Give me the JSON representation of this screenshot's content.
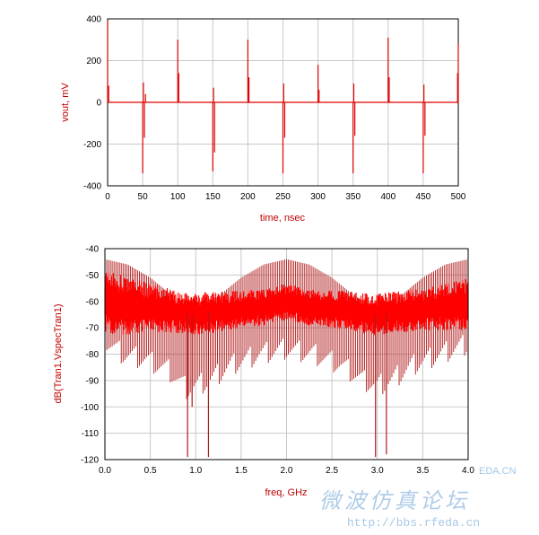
{
  "chart_data": [
    {
      "type": "line",
      "xlabel": "time, nsec",
      "ylabel": "vout, mV",
      "xlim": [
        0,
        500
      ],
      "ylim": [
        -400,
        400
      ],
      "xticks": [
        "0",
        "50",
        "100",
        "150",
        "200",
        "250",
        "300",
        "350",
        "400",
        "450",
        "500"
      ],
      "yticks": [
        "400",
        "200",
        "0",
        "-200",
        "-400"
      ],
      "grid": true,
      "color": "#e00000",
      "spikes": [
        {
          "t": 0,
          "v": 390
        },
        {
          "t": 1.5,
          "v": 80
        },
        {
          "t": 50,
          "v": -340
        },
        {
          "t": 51,
          "v": 95
        },
        {
          "t": 52.5,
          "v": -170
        },
        {
          "t": 54,
          "v": 40
        },
        {
          "t": 100,
          "v": 300
        },
        {
          "t": 101.5,
          "v": 140
        },
        {
          "t": 150,
          "v": -330
        },
        {
          "t": 151,
          "v": 70
        },
        {
          "t": 152.5,
          "v": -240
        },
        {
          "t": 200,
          "v": 300
        },
        {
          "t": 201.5,
          "v": 120
        },
        {
          "t": 250,
          "v": -340
        },
        {
          "t": 251,
          "v": 90
        },
        {
          "t": 252.5,
          "v": -170
        },
        {
          "t": 300,
          "v": 180
        },
        {
          "t": 301.5,
          "v": 60
        },
        {
          "t": 350,
          "v": -340
        },
        {
          "t": 351,
          "v": 90
        },
        {
          "t": 352.5,
          "v": -160
        },
        {
          "t": 400,
          "v": 310
        },
        {
          "t": 401.5,
          "v": 120
        },
        {
          "t": 450,
          "v": -340
        },
        {
          "t": 451,
          "v": 85
        },
        {
          "t": 452.5,
          "v": -160
        },
        {
          "t": 499,
          "v": 140
        },
        {
          "t": 500,
          "v": 280
        }
      ]
    },
    {
      "type": "line",
      "xlabel": "freq, GHz",
      "ylabel": "dB(Tran1.VspecTran1)",
      "xlim": [
        0,
        4
      ],
      "ylim": [
        -120,
        -40
      ],
      "xticks": [
        "0.0",
        "0.5",
        "1.0",
        "1.5",
        "2.0",
        "2.5",
        "3.0",
        "3.5",
        "4.0"
      ],
      "yticks": [
        "-40",
        "-50",
        "-60",
        "-70",
        "-80",
        "-90",
        "-100",
        "-110",
        "-120"
      ],
      "grid": true,
      "color": "#ff0000",
      "envelope_top": {
        "f": [
          0.0,
          0.25,
          0.5,
          0.75,
          1.0,
          1.25,
          1.5,
          1.75,
          2.0,
          2.25,
          2.5,
          2.75,
          3.0,
          3.25,
          3.5,
          3.75,
          4.0
        ],
        "db": [
          -44,
          -46,
          -51,
          -58,
          -62,
          -58,
          -51,
          -46,
          -44,
          -46,
          -51,
          -58,
          -62,
          -58,
          -51,
          -46,
          -44
        ]
      },
      "envelope_bottom": {
        "f": [
          0.0,
          0.2,
          0.45,
          0.7,
          0.9,
          1.0,
          1.15,
          1.4,
          1.7,
          2.0,
          2.3,
          2.6,
          2.85,
          3.0,
          3.15,
          3.4,
          3.7,
          4.0
        ],
        "db": [
          -75,
          -80,
          -82,
          -86,
          -93,
          -92,
          -90,
          -84,
          -80,
          -78,
          -80,
          -84,
          -90,
          -92,
          -90,
          -84,
          -80,
          -76
        ]
      },
      "dense_band": {
        "f": [
          0.0,
          0.3,
          0.6,
          0.8,
          1.0,
          1.2,
          1.5,
          1.8,
          2.0,
          2.2,
          2.5,
          2.8,
          3.0,
          3.2,
          3.5,
          3.8,
          4.0
        ],
        "center": [
          -60,
          -62,
          -63,
          -64,
          -65,
          -64,
          -63,
          -62,
          -60,
          -62,
          -63,
          -64,
          -65,
          -64,
          -63,
          -62,
          -61
        ],
        "half_width": [
          12,
          11,
          9,
          8,
          8,
          8,
          7,
          7,
          7,
          7,
          7,
          8,
          8,
          8,
          8,
          9,
          10
        ]
      },
      "deep_nulls": [
        {
          "f": 0.91,
          "db": -119
        },
        {
          "f": 0.96,
          "db": -100
        },
        {
          "f": 1.14,
          "db": -119
        },
        {
          "f": 2.98,
          "db": -119
        },
        {
          "f": 3.1,
          "db": -118
        }
      ]
    }
  ],
  "watermark": {
    "site": "EDA.CN",
    "cn_text": "微波仿真论坛",
    "url": "http://bbs.rfeda.cn"
  }
}
